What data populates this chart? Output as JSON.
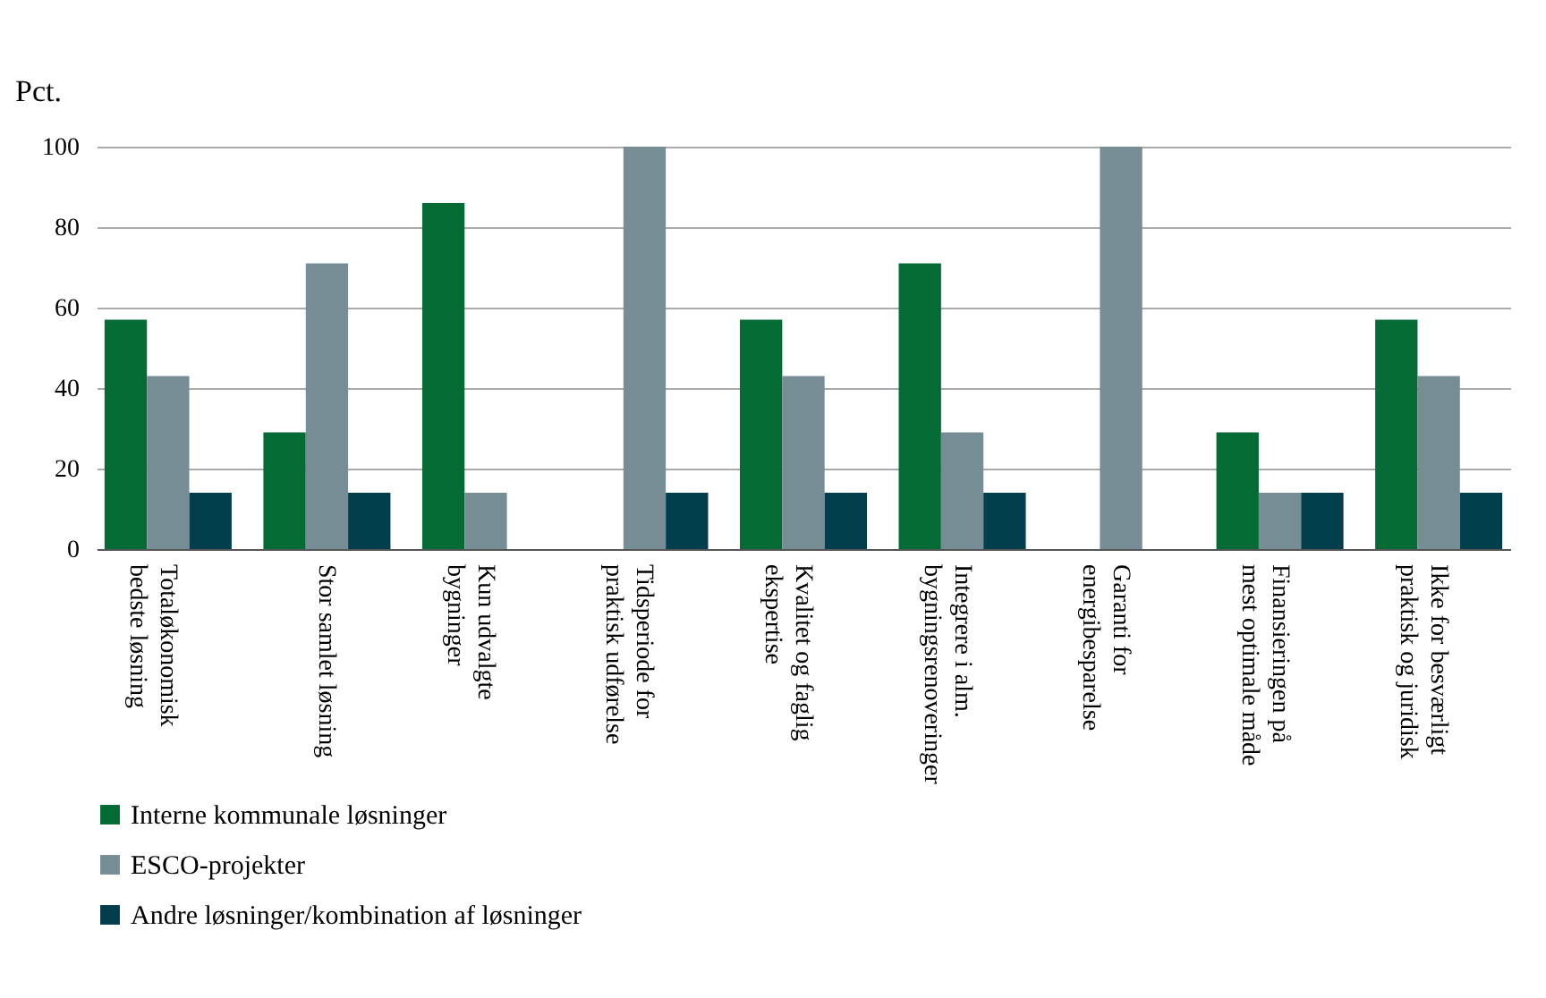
{
  "chart_data": {
    "type": "bar",
    "ylabel": "Pct.",
    "categories": [
      "Totaløkonomisk bedste løsning",
      "Stor samlet løsning",
      "Kun udvalgte bygninger",
      "Tidsperiode for praktisk udførelse",
      "Kvalitet og faglig ekspertise",
      "Integrere i alm. bygningsrenoveringer",
      "Garanti for energibesparelse",
      "Finansieringen på mest optimale måde",
      "Ikke for besværligt praktisk og juridisk"
    ],
    "series": [
      {
        "name": "Interne kommunale løsninger",
        "color": "#046b35",
        "values": [
          57,
          29,
          86,
          0,
          57,
          71,
          0,
          29,
          57
        ]
      },
      {
        "name": "ESCO-projekter",
        "color": "#778d95",
        "values": [
          43,
          71,
          14,
          100,
          43,
          29,
          100,
          14,
          43
        ]
      },
      {
        "name": "Andre løsninger/kombination af løsninger",
        "color": "#023e4b",
        "values": [
          14,
          14,
          0,
          14,
          14,
          14,
          0,
          14,
          14
        ]
      }
    ],
    "ylim": [
      0,
      100
    ],
    "yticks": [
      0,
      20,
      40,
      60,
      80,
      100
    ],
    "grid": "y",
    "legend": "bottom"
  }
}
